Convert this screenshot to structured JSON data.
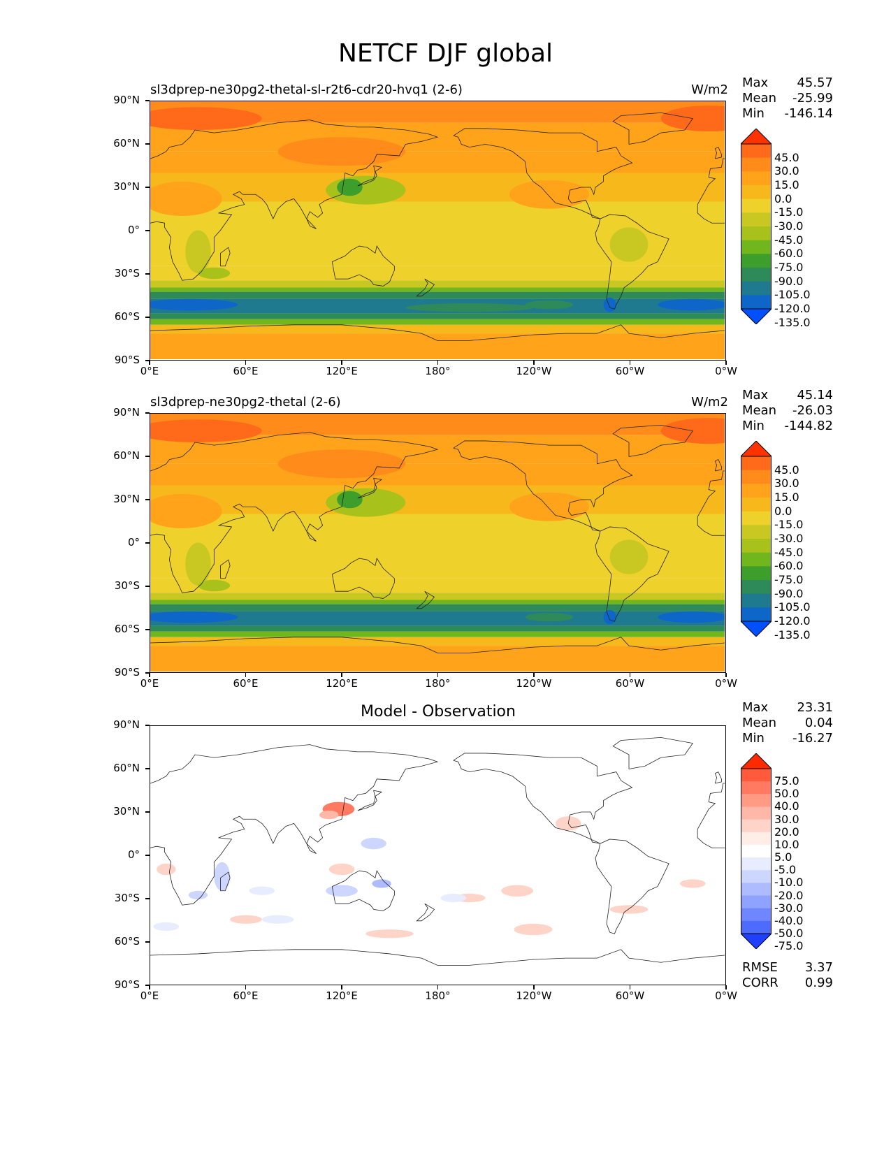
{
  "title": "NETCF DJF global",
  "panels": [
    {
      "left_title": "sl3dprep-ne30pg2-thetal-sl-r2t6-cdr20-hvq1 (2-6)",
      "right_title": "W/m2",
      "center_title": "",
      "stats": {
        "Max": "45.57",
        "Mean": "-25.99",
        "Min": "-146.14"
      },
      "colorbar": {
        "labels": [
          "45.0",
          "30.0",
          "15.0",
          "0.0",
          "-15.0",
          "-30.0",
          "-45.0",
          "-60.0",
          "-75.0",
          "-90.0",
          "-105.0",
          "-120.0",
          "-135.0"
        ],
        "colors": [
          "#ff3300",
          "#ff6a1a",
          "#ff8c1a",
          "#ffa31a",
          "#f7b81c",
          "#eed12b",
          "#c9c823",
          "#a8c21b",
          "#72b61e",
          "#3e9e2c",
          "#2f8a5a",
          "#1f7a90",
          "#0e67c8",
          "#0050ff"
        ]
      },
      "fields": "model1"
    },
    {
      "left_title": "sl3dprep-ne30pg2-thetal (2-6)",
      "right_title": "W/m2",
      "center_title": "",
      "stats": {
        "Max": "45.14",
        "Mean": "-26.03",
        "Min": "-144.82"
      },
      "colorbar": {
        "labels": [
          "45.0",
          "30.0",
          "15.0",
          "0.0",
          "-15.0",
          "-30.0",
          "-45.0",
          "-60.0",
          "-75.0",
          "-90.0",
          "-105.0",
          "-120.0",
          "-135.0"
        ],
        "colors": [
          "#ff3300",
          "#ff6a1a",
          "#ff8c1a",
          "#ffa31a",
          "#f7b81c",
          "#eed12b",
          "#c9c823",
          "#a8c21b",
          "#72b61e",
          "#3e9e2c",
          "#2f8a5a",
          "#1f7a90",
          "#0e67c8",
          "#0050ff"
        ]
      },
      "fields": "model2"
    },
    {
      "left_title": "",
      "right_title": "",
      "center_title": "Model - Observation",
      "stats": {
        "Max": "23.31",
        "Mean": "0.04",
        "Min": "-16.27"
      },
      "colorbar": {
        "labels": [
          "75.0",
          "50.0",
          "40.0",
          "30.0",
          "20.0",
          "10.0",
          "5.0",
          "-5.0",
          "-10.0",
          "-20.0",
          "-30.0",
          "-40.0",
          "-50.0",
          "-75.0"
        ],
        "colors": [
          "#ff2a00",
          "#ff5a3c",
          "#ff7a60",
          "#ff9a84",
          "#ffb8a8",
          "#ffd4c8",
          "#ffeee8",
          "#ffffff",
          "#e8ecff",
          "#cdd6ff",
          "#aebcff",
          "#8fa2ff",
          "#6e86ff",
          "#4d6cff",
          "#1f3fff"
        ]
      },
      "rmse": {
        "RMSE": "3.37",
        "CORR": "0.99"
      },
      "fields": "diff"
    }
  ],
  "axes": {
    "yticks": [
      "90°N",
      "60°N",
      "30°N",
      "0°",
      "30°S",
      "60°S",
      "90°S"
    ],
    "xticks": [
      "0°E",
      "60°E",
      "120°E",
      "180°",
      "120°W",
      "60°W",
      "0°W"
    ]
  }
}
